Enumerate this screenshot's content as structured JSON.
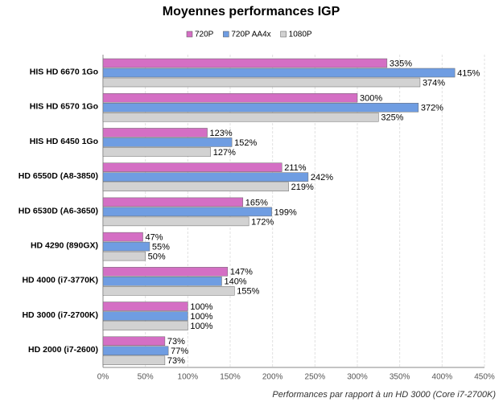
{
  "chart_data": {
    "type": "hbar",
    "title": "Moyennes performances IGP",
    "x_label": "Performances  par rapport à un HD 3000 (Core i7-2700K)",
    "categories": [
      "HIS HD 6670 1Go",
      "HIS HD 6570 1Go",
      "HIS HD 6450 1Go",
      "HD 6550D (A8-3850)",
      "HD 6530D (A6-3650)",
      "HD 4290 (890GX)",
      "HD 4000 (i7-3770K)",
      "HD 3000 (i7-2700K)",
      "HD 2000 (i7-2600)"
    ],
    "series": [
      {
        "name": "720P",
        "color": "#d46fc4",
        "values": [
          335,
          300,
          123,
          211,
          165,
          47,
          147,
          100,
          73
        ],
        "value_labels": [
          "335%",
          "300%",
          "123%",
          "211%",
          "165%",
          "47%",
          "147%",
          "100%",
          "73%"
        ]
      },
      {
        "name": "720P  AA4x",
        "color": "#6f9de2",
        "values": [
          415,
          372,
          152,
          242,
          199,
          55,
          140,
          100,
          77
        ],
        "value_labels": [
          "415%",
          "372%",
          "152%",
          "242%",
          "199%",
          "55%",
          "140%",
          "100%",
          "77%"
        ]
      },
      {
        "name": "1080P",
        "color": "#d2d2d2",
        "values": [
          374,
          325,
          127,
          219,
          172,
          50,
          155,
          100,
          73
        ],
        "value_labels": [
          "374%",
          "325%",
          "127%",
          "219%",
          "172%",
          "50%",
          "155%",
          "100%",
          "73%"
        ]
      }
    ],
    "xlim": [
      0,
      450
    ],
    "xticks": [
      {
        "value": 0,
        "label": "0%"
      },
      {
        "value": 50,
        "label": "50%"
      },
      {
        "value": 100,
        "label": "100%"
      },
      {
        "value": 150,
        "label": "150%"
      },
      {
        "value": 200,
        "label": "200%"
      },
      {
        "value": 250,
        "label": "250%"
      },
      {
        "value": 300,
        "label": "300%"
      },
      {
        "value": 350,
        "label": "350%"
      },
      {
        "value": 400,
        "label": "400%"
      },
      {
        "value": 450,
        "label": "450%"
      }
    ],
    "grid": true,
    "legend": "top"
  }
}
